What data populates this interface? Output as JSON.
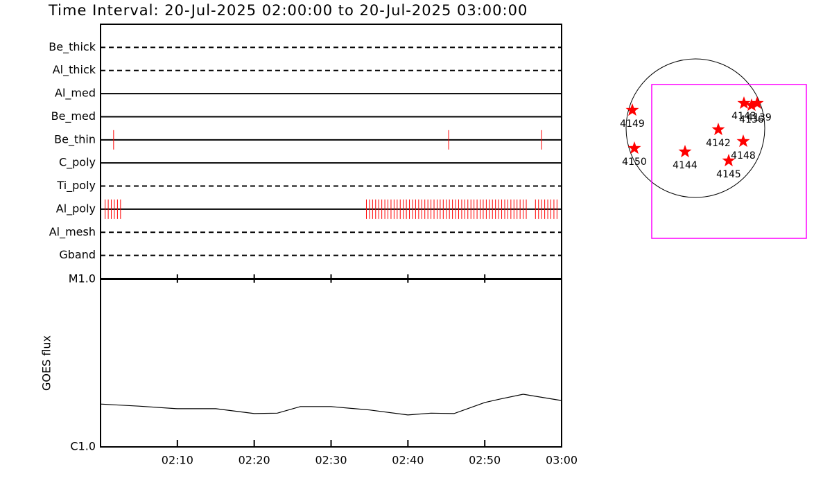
{
  "chart_data": [
    {
      "type": "timeline",
      "title": "Time Interval: 20-Jul-2025 02:00:00 to 20-Jul-2025 03:00:00",
      "color": "#ff0000",
      "xlim": [
        0,
        60
      ],
      "rows": [
        {
          "name": "Be_thick",
          "style": "dashed",
          "obs": []
        },
        {
          "name": "Al_thick",
          "style": "dashed",
          "obs": []
        },
        {
          "name": "Al_med",
          "style": "solid",
          "obs": []
        },
        {
          "name": "Be_med",
          "style": "solid",
          "obs": []
        },
        {
          "name": "Be_thin",
          "style": "solid",
          "obs": [
            1.7,
            45.3,
            57.4
          ]
        },
        {
          "name": "C_poly",
          "style": "solid",
          "obs": []
        },
        {
          "name": "Ti_poly",
          "style": "dashed",
          "obs": []
        },
        {
          "name": "Al_poly",
          "style": "solid",
          "obs": [
            0.6,
            1.0,
            1.4,
            1.8,
            2.2,
            2.6,
            34.6,
            35,
            35.4,
            35.8,
            36.2,
            36.6,
            37,
            37.4,
            37.8,
            38.2,
            38.6,
            39,
            39.4,
            39.8,
            40.2,
            40.6,
            41,
            41.4,
            41.8,
            42.2,
            42.6,
            43,
            43.4,
            43.8,
            44.2,
            44.6,
            45,
            45.4,
            45.8,
            46.2,
            46.6,
            47,
            47.4,
            47.8,
            48.2,
            48.6,
            49,
            49.4,
            49.8,
            50.2,
            50.6,
            51,
            51.4,
            51.8,
            52.2,
            52.6,
            53,
            53.4,
            53.8,
            54.2,
            54.6,
            55,
            55.4,
            56.6,
            57,
            57.4,
            57.8,
            58.2,
            58.6,
            59,
            59.4
          ]
        },
        {
          "name": "Al_mesh",
          "style": "dashed",
          "obs": []
        },
        {
          "name": "Gband",
          "style": "dashed",
          "obs": []
        }
      ]
    },
    {
      "type": "line",
      "ylabel": "GOES flux",
      "color": "#000000",
      "x": [
        0,
        5,
        10,
        15,
        20,
        23,
        26,
        30,
        35,
        40,
        43,
        46,
        50,
        52,
        55,
        60
      ],
      "values": [
        1.8e-06,
        1.75e-06,
        1.69e-06,
        1.69e-06,
        1.58e-06,
        1.59e-06,
        1.74e-06,
        1.74e-06,
        1.66e-06,
        1.55e-06,
        1.59e-06,
        1.58e-06,
        1.84e-06,
        1.93e-06,
        2.06e-06,
        1.89e-06
      ],
      "xlim": [
        0,
        60
      ],
      "xticks": [
        {
          "value": 10,
          "label": "02:10"
        },
        {
          "value": 20,
          "label": "02:20"
        },
        {
          "value": 30,
          "label": "02:30"
        },
        {
          "value": 40,
          "label": "02:40"
        },
        {
          "value": 50,
          "label": "02:50"
        },
        {
          "value": 60,
          "label": "03:00"
        }
      ],
      "ylim": [
        1e-06,
        1e-05
      ],
      "yticks": [
        {
          "value": 1e-06,
          "label": "C1.0"
        },
        {
          "value": 1e-05,
          "label": "M1.0"
        }
      ],
      "log": true
    }
  ],
  "map": {
    "regions": [
      "4149",
      "4150",
      "4144",
      "4142",
      "4148",
      "4145",
      "4143",
      "4136",
      "4139"
    ]
  }
}
